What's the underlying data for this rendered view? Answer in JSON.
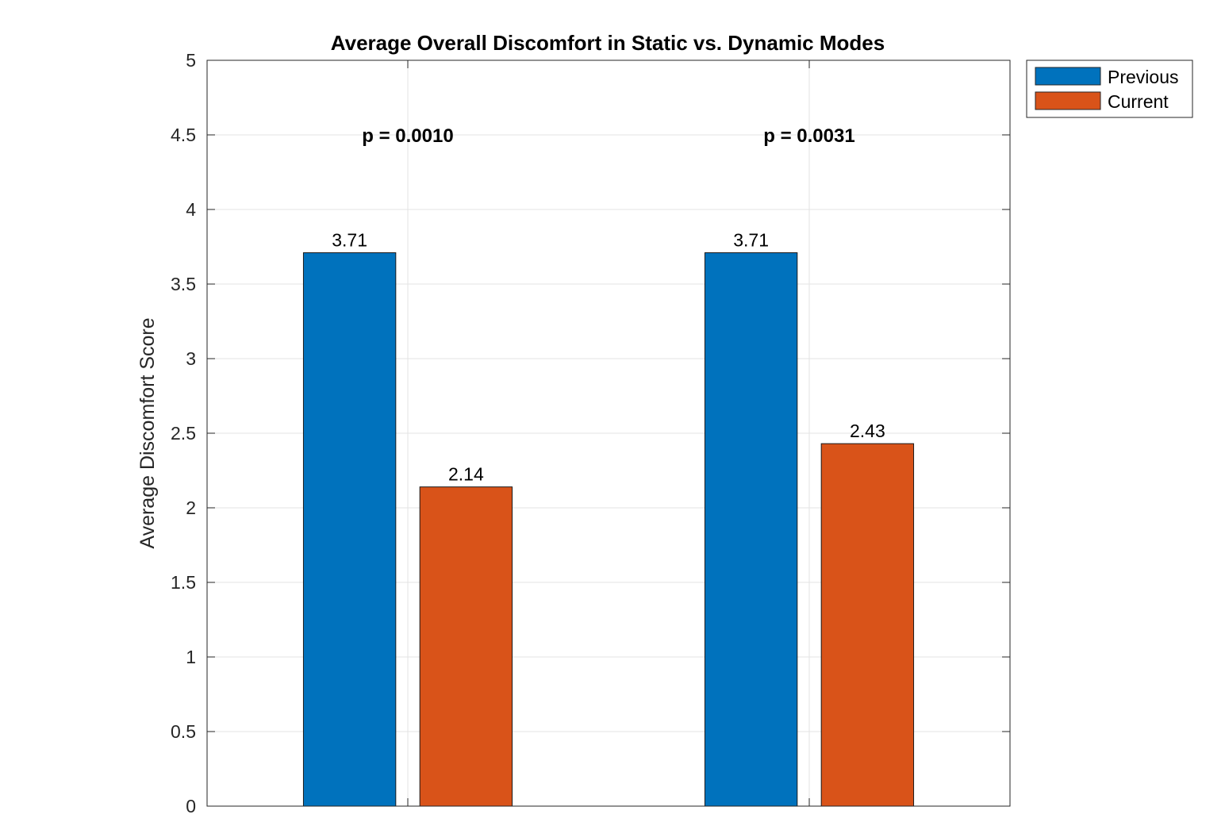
{
  "chart_data": {
    "type": "bar",
    "title": "Average Overall Discomfort in Static vs. Dynamic Modes",
    "xlabel": "",
    "ylabel": "Average Discomfort Score",
    "ylim": [
      0,
      5
    ],
    "yticks": [
      0,
      0.5,
      1,
      1.5,
      2,
      2.5,
      3,
      3.5,
      4,
      4.5,
      5
    ],
    "ytick_labels": [
      "0",
      "0.5",
      "1",
      "1.5",
      "2",
      "2.5",
      "3",
      "3.5",
      "4",
      "4.5",
      "5"
    ],
    "categories": [
      "",
      ""
    ],
    "series": [
      {
        "name": "Previous",
        "color": "#0072BD",
        "values": [
          3.71,
          3.71
        ],
        "labels": [
          "3.71",
          "3.71"
        ]
      },
      {
        "name": "Current",
        "color": "#D95319",
        "values": [
          2.14,
          2.43
        ],
        "labels": [
          "2.14",
          "2.43"
        ]
      }
    ],
    "annotations": [
      "p = 0.0010",
      "p = 0.0031"
    ],
    "annotation_y": 4.5,
    "grid": true,
    "legend_position": "outside-top-right"
  }
}
